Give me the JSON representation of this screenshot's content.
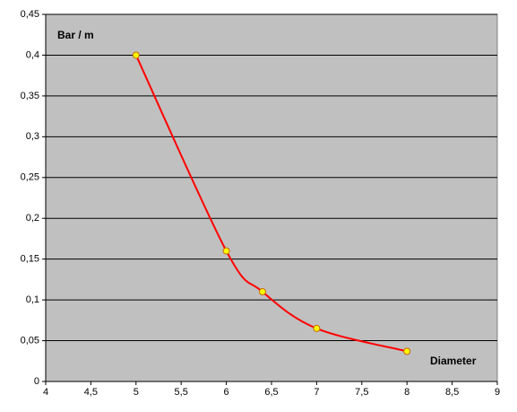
{
  "chart_data": {
    "type": "scatter",
    "y_label": "Bar / m",
    "x_label": "Diameter",
    "x": [
      5,
      6,
      6.4,
      7,
      8
    ],
    "values": [
      0.4,
      0.16,
      0.11,
      0.065,
      0.037
    ],
    "color": "#ff0000",
    "marker_color": "#ffff00",
    "smooth": true,
    "background": "#c0c0c0",
    "grid": true,
    "xlim": [
      4,
      9
    ],
    "ylim": [
      0,
      0.45
    ],
    "xticks": [
      4,
      {
        "value": 4.5,
        "label": "4,5"
      },
      5,
      {
        "value": 5.5,
        "label": "5,5"
      },
      6,
      {
        "value": 6.5,
        "label": "6,5"
      },
      7,
      {
        "value": 7.5,
        "label": "7,5"
      },
      8,
      {
        "value": 8.5,
        "label": "8,5"
      },
      9
    ],
    "yticks": [
      0,
      {
        "value": 0.05,
        "label": "0,05"
      },
      {
        "value": 0.1,
        "label": "0,1"
      },
      {
        "value": 0.15,
        "label": "0,15"
      },
      {
        "value": 0.2,
        "label": "0,2"
      },
      {
        "value": 0.25,
        "label": "0,25"
      },
      {
        "value": 0.3,
        "label": "0,3"
      },
      {
        "value": 0.35,
        "label": "0,35"
      },
      {
        "value": 0.4,
        "label": "0,4"
      },
      {
        "value": 0.45,
        "label": "0,45"
      }
    ]
  }
}
